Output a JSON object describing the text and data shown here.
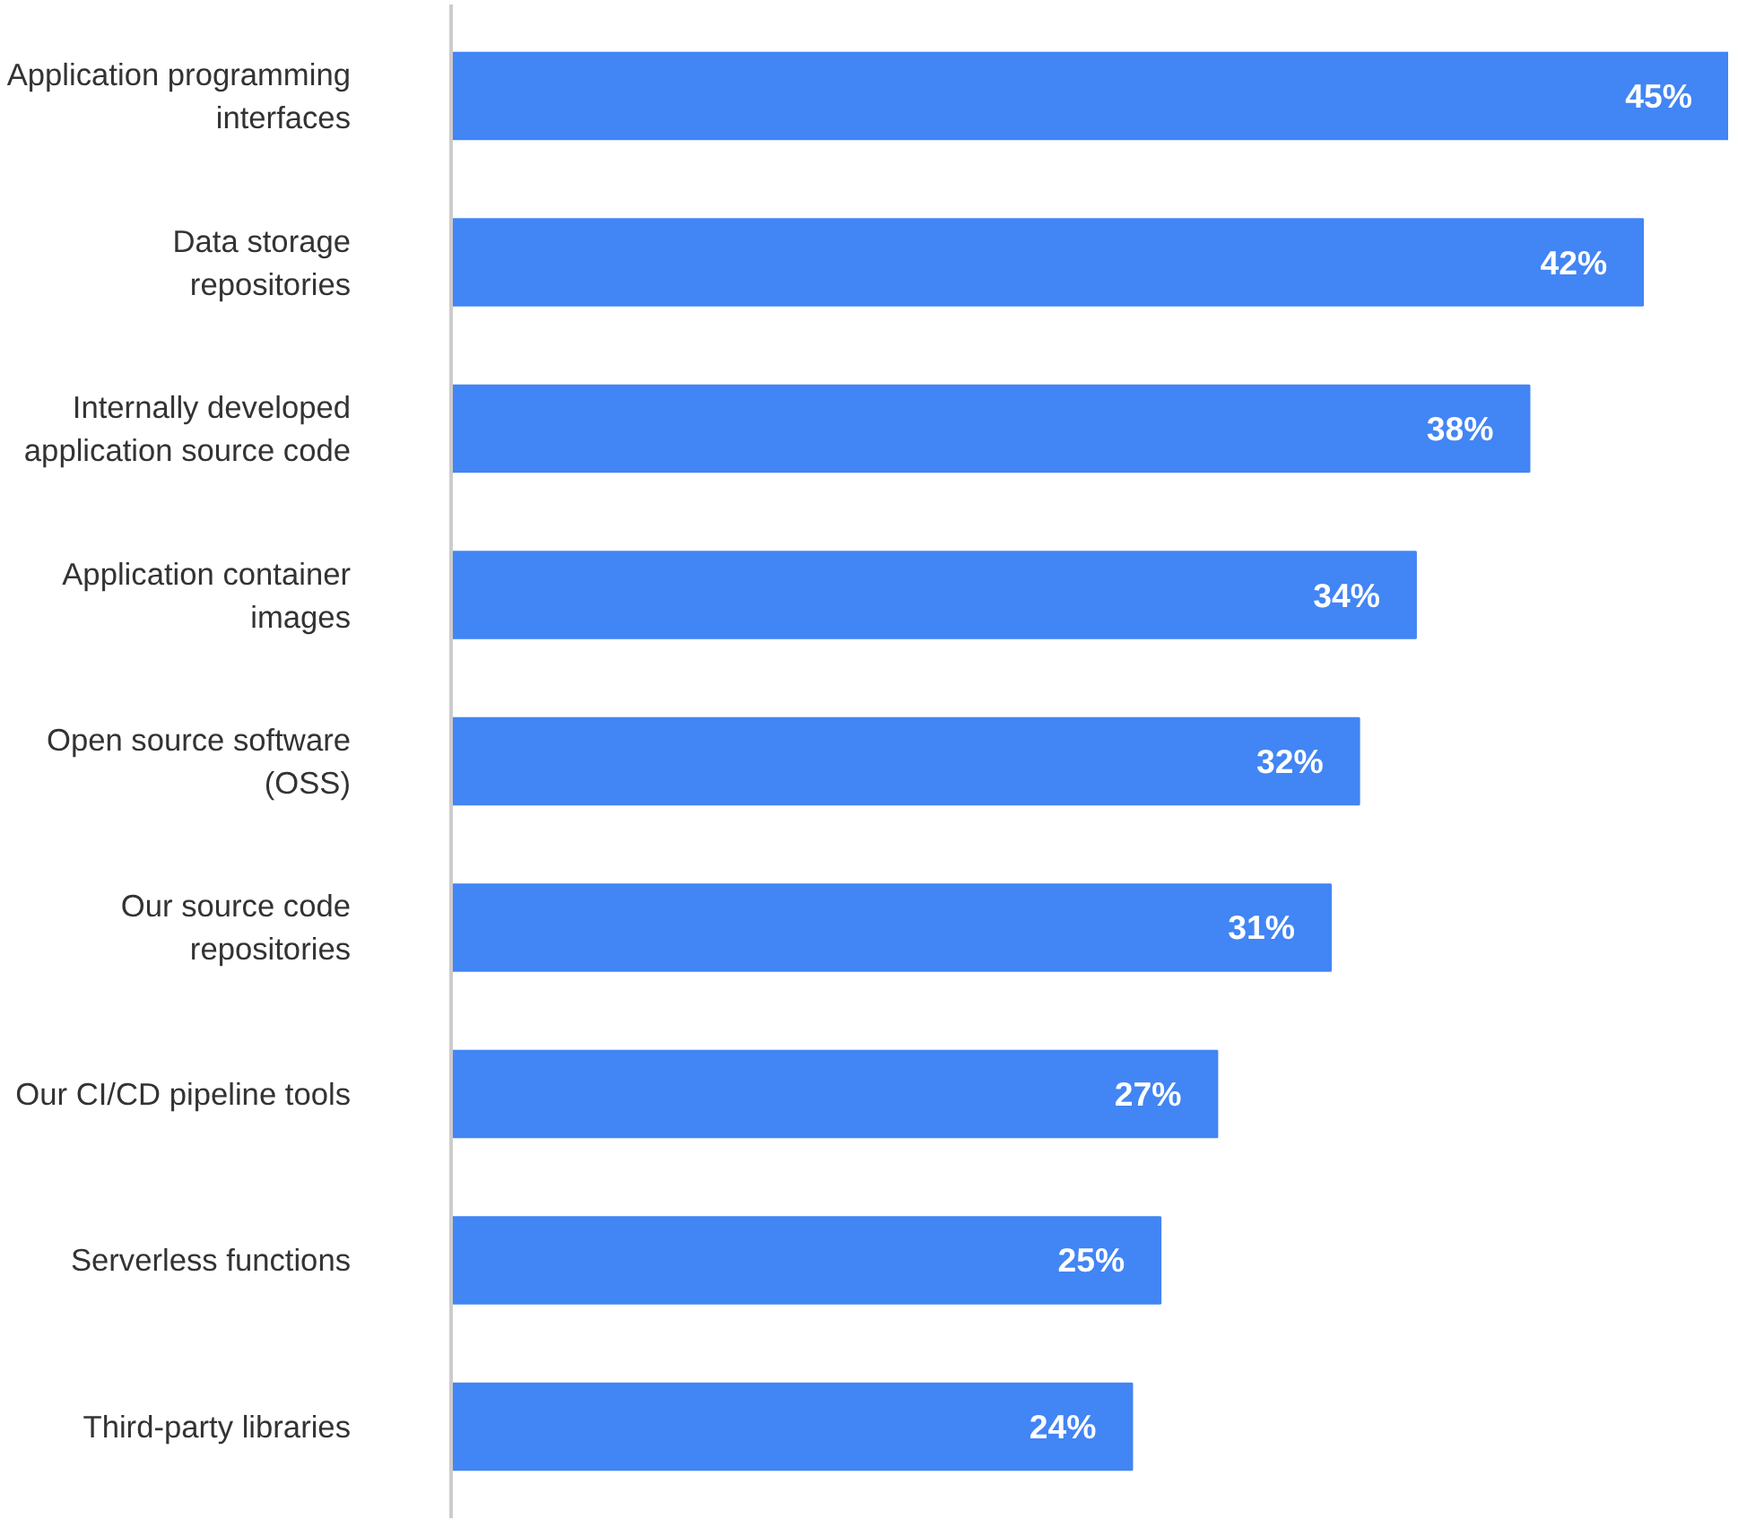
{
  "chart_data": {
    "type": "bar",
    "orientation": "horizontal",
    "categories": [
      "Application programming interfaces",
      "Data storage repositories",
      "Internally developed application source code",
      "Application container images",
      "Open source software (OSS)",
      "Our source code repositories",
      "Our CI/CD pipeline tools",
      "Serverless functions",
      "Third-party libraries"
    ],
    "values": [
      45,
      42,
      38,
      34,
      32,
      31,
      27,
      25,
      24
    ],
    "value_labels": [
      "45%",
      "42%",
      "38%",
      "34%",
      "32%",
      "31%",
      "27%",
      "25%",
      "24%"
    ],
    "color": "#4285f4"
  }
}
